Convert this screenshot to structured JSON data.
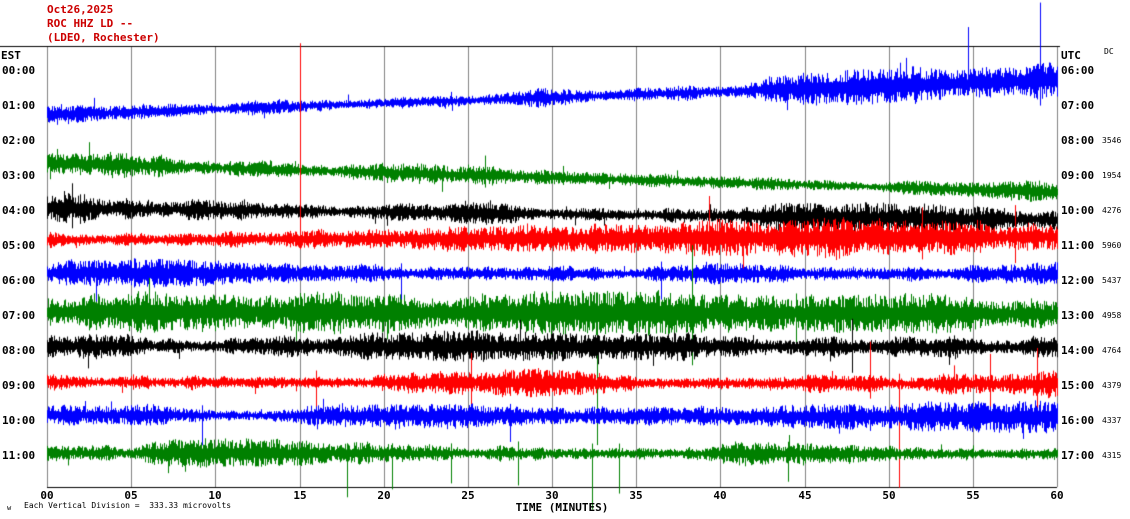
{
  "header": {
    "date": "Oct26,2025",
    "station_line": "ROC HHZ LD --",
    "location_line": "(LDEO, Rochester)"
  },
  "axes": {
    "left_label": "EST",
    "right_label": "UTC",
    "right_corner_label": "DC",
    "x_title": "TIME (MINUTES)",
    "x_ticks": [
      "00",
      "05",
      "10",
      "15",
      "20",
      "25",
      "30",
      "35",
      "40",
      "45",
      "50",
      "55",
      "60"
    ]
  },
  "footer": {
    "note": "Each Vertical Division =  333.33 microvolts",
    "mark": "w"
  },
  "colors": {
    "header_text": "#cc0000",
    "grid_line": "#808080",
    "border": "#000000"
  },
  "chart_data": {
    "type": "line",
    "subtype": "helicorder-seismogram",
    "x_range_minutes": [
      0,
      60
    ],
    "minutes_per_row": 60,
    "grid_interval_minutes": 5,
    "rows": [
      {
        "est": "00:00",
        "utc": "06:00",
        "scale": null,
        "color": null,
        "has_trace": false
      },
      {
        "est": "01:00",
        "utc": "07:00",
        "scale": null,
        "color": null,
        "has_trace": false
      },
      {
        "est": "02:00",
        "utc": "08:00",
        "scale": "3546",
        "color": "#0000ff",
        "has_trace": true,
        "offset_start": -26,
        "offset_end": -61,
        "amps": [
          15,
          13,
          13,
          14,
          16,
          19,
          21
        ],
        "spikes": [
          [
            54.7,
            56,
            12
          ],
          [
            59.0,
            78,
            25
          ]
        ]
      },
      {
        "est": "03:00",
        "utc": "09:00",
        "scale": "1954",
        "color": "#008000",
        "has_trace": true,
        "offset_start": -13,
        "offset_end": 16,
        "amps": [
          18,
          17,
          16,
          13,
          12,
          11,
          11
        ],
        "spikes": [
          [
            2.5,
            22,
            8
          ],
          [
            26.0,
            20,
            12
          ]
        ]
      },
      {
        "est": "04:00",
        "utc": "10:00",
        "scale": "4276",
        "color": "#000000",
        "has_trace": true,
        "offset_start": -3,
        "offset_end": 9,
        "amps": [
          22,
          15,
          13,
          13,
          14,
          16,
          17
        ],
        "spikes": [
          [
            1.5,
            25,
            20
          ]
        ]
      },
      {
        "est": "05:00",
        "utc": "11:00",
        "scale": "5960",
        "color": "#ff0000",
        "has_trace": true,
        "offset_start": -6,
        "offset_end": -9,
        "amps": [
          14,
          13,
          13,
          14,
          20,
          25,
          27
        ],
        "spikes": [
          [
            15.0,
            196,
            10
          ],
          [
            39.3,
            42,
            18
          ],
          [
            52.0,
            30,
            22
          ],
          [
            57.5,
            32,
            26
          ]
        ]
      },
      {
        "est": "06:00",
        "utc": "12:00",
        "scale": "5437",
        "color": "#0000ff",
        "has_trace": true,
        "offset_start": -8,
        "offset_end": -7,
        "amps": [
          15,
          15,
          14,
          14,
          15,
          16,
          17
        ],
        "spikes": [
          [
            2.9,
            12,
            50
          ],
          [
            21.0,
            10,
            34
          ],
          [
            36.5,
            12,
            26
          ]
        ]
      },
      {
        "est": "07:00",
        "utc": "13:00",
        "scale": "4958",
        "color": "#008000",
        "has_trace": true,
        "offset_start": -4,
        "offset_end": -2,
        "amps": [
          24,
          22,
          22,
          24,
          24,
          22,
          20
        ],
        "spikes": [
          [
            14.8,
            15,
            38
          ],
          [
            32.7,
            12,
            132
          ],
          [
            38.3,
            68,
            52
          ],
          [
            44.5,
            20,
            36
          ]
        ]
      },
      {
        "est": "08:00",
        "utc": "14:00",
        "scale": "4764",
        "color": "#000000",
        "has_trace": true,
        "offset_start": -5,
        "offset_end": -4,
        "amps": [
          18,
          17,
          16,
          17,
          19,
          21,
          18
        ],
        "spikes": [
          [
            47.8,
            28,
            26
          ]
        ]
      },
      {
        "est": "09:00",
        "utc": "15:00",
        "scale": "4379",
        "color": "#ff0000",
        "has_trace": true,
        "offset_start": -4,
        "offset_end": -2,
        "amps": [
          15,
          15,
          16,
          15,
          16,
          18,
          20
        ],
        "spikes": [
          [
            16.0,
            12,
            28
          ],
          [
            25.2,
            30,
            32
          ],
          [
            48.9,
            42,
            15
          ],
          [
            50.6,
            10,
            104
          ],
          [
            56.0,
            30,
            25
          ],
          [
            58.8,
            36,
            30
          ]
        ]
      },
      {
        "est": "10:00",
        "utc": "16:00",
        "scale": "4337",
        "color": "#0000ff",
        "has_trace": true,
        "offset_start": -6,
        "offset_end": -4,
        "amps": [
          14,
          14,
          14,
          14,
          14,
          15,
          17
        ],
        "spikes": [
          [
            9.2,
            10,
            30
          ],
          [
            27.5,
            12,
            26
          ],
          [
            58.0,
            12,
            22
          ]
        ]
      },
      {
        "est": "11:00",
        "utc": "17:00",
        "scale": "4315",
        "color": "#008000",
        "has_trace": true,
        "offset_start": -3,
        "offset_end": -2,
        "amps": [
          15,
          15,
          16,
          15,
          14,
          13,
          13
        ],
        "spikes": [
          [
            17.8,
            10,
            44
          ],
          [
            20.5,
            10,
            36
          ],
          [
            24.0,
            10,
            30
          ],
          [
            28.0,
            12,
            32
          ],
          [
            32.4,
            10,
            56
          ],
          [
            34.0,
            10,
            40
          ],
          [
            44.0,
            12,
            28
          ]
        ]
      }
    ]
  }
}
